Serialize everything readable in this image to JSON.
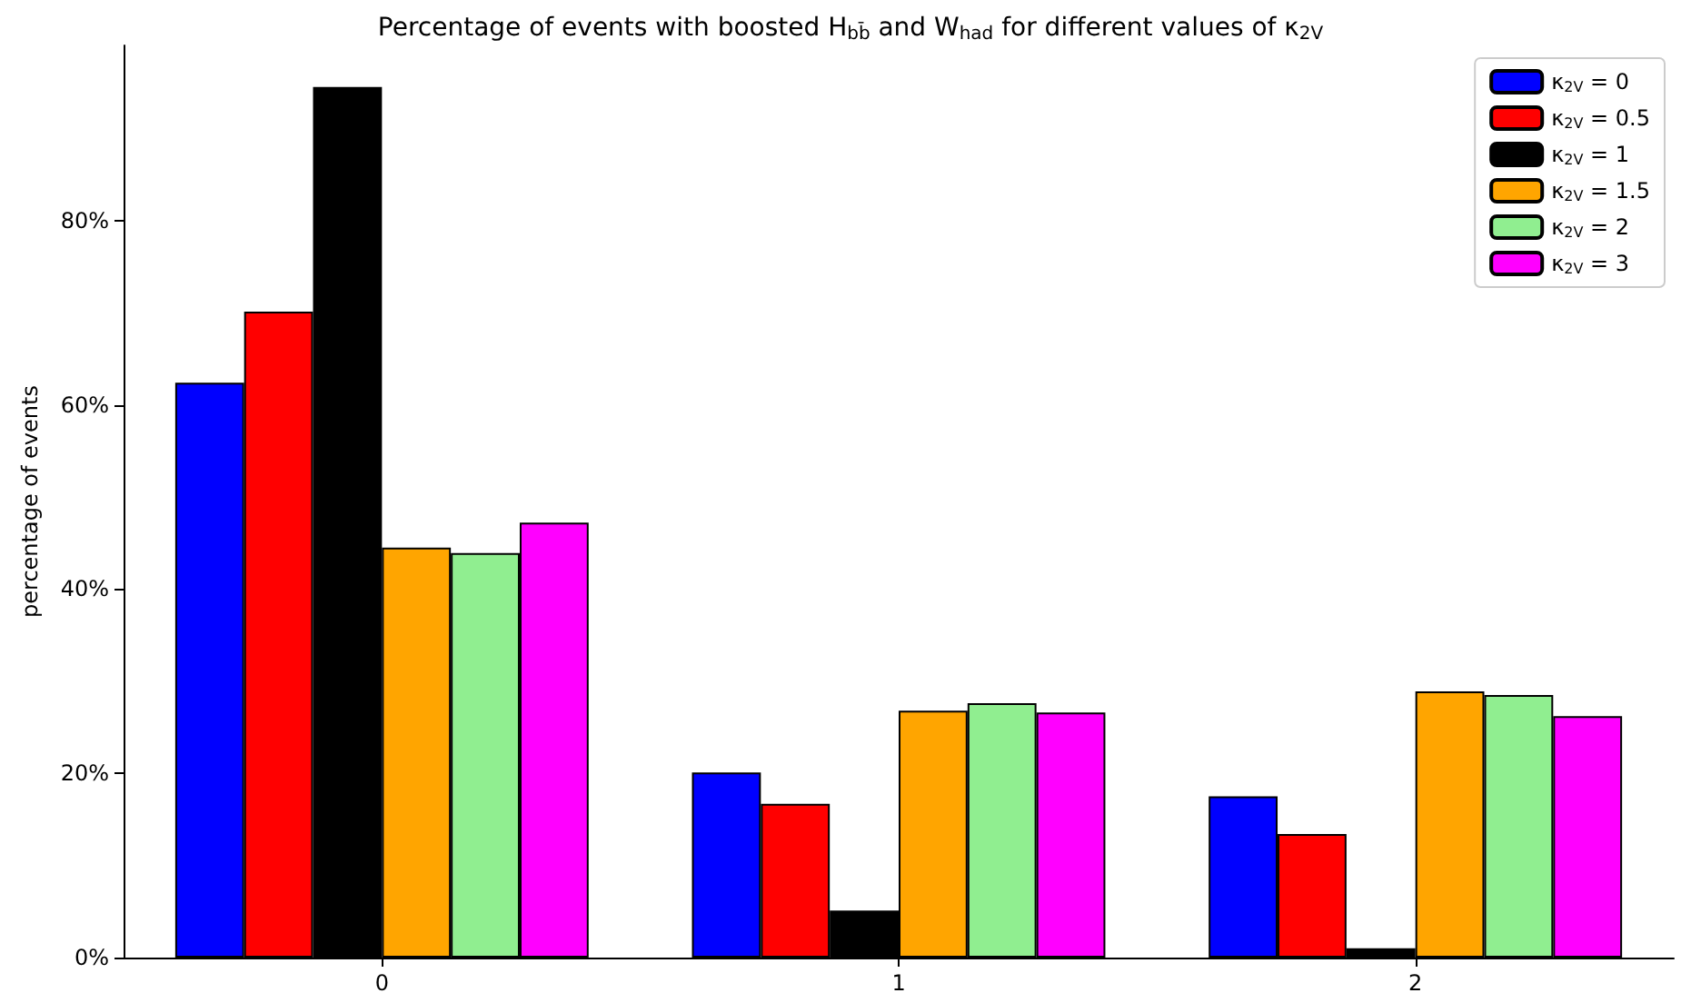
{
  "chart_data": {
    "type": "bar",
    "title": "Percentage of events with boosted H$_{bb̄}$ and W$_{had}$ for different values of κ$_{2V}$",
    "ylabel": "percentage of events",
    "categories": [
      "0",
      "1",
      "2"
    ],
    "series": [
      {
        "name": "κ$_{2V}$ = 0",
        "color": "#0000ff",
        "values": [
          62.4,
          20.1,
          17.5
        ]
      },
      {
        "name": "κ$_{2V}$ = 0.5",
        "color": "#ff0000",
        "values": [
          70.1,
          16.7,
          13.4
        ]
      },
      {
        "name": "κ$_{2V}$ = 1",
        "color": "#000000",
        "values": [
          94.5,
          5.1,
          1.0
        ]
      },
      {
        "name": "κ$_{2V}$ = 1.5",
        "color": "#ffa500",
        "values": [
          44.5,
          26.8,
          28.9
        ]
      },
      {
        "name": "κ$_{2V}$ = 2",
        "color": "#90ee90",
        "values": [
          43.9,
          27.6,
          28.5
        ]
      },
      {
        "name": "κ$_{2V}$ = 3",
        "color": "#ff00ff",
        "values": [
          47.2,
          26.6,
          26.2
        ]
      }
    ],
    "ylim": [
      0,
      99
    ],
    "yticks": [
      {
        "value": 0,
        "label": "0%"
      },
      {
        "value": 20,
        "label": "20%"
      },
      {
        "value": 40,
        "label": "40%"
      },
      {
        "value": 60,
        "label": "60%"
      },
      {
        "value": 80,
        "label": "80%"
      }
    ],
    "grid": false,
    "legend": "top right"
  }
}
